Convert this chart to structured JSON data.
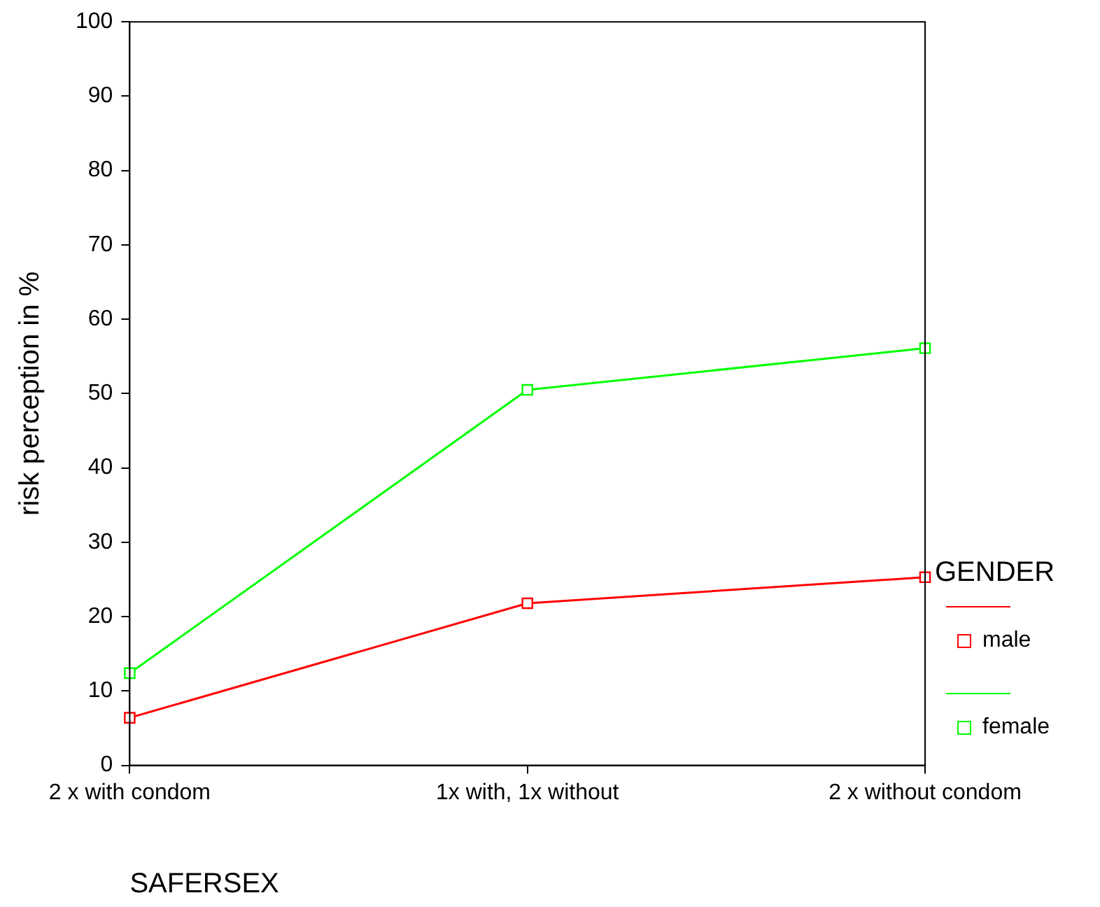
{
  "chart_data": {
    "type": "line",
    "xlabel": "SAFERSEX",
    "ylabel": "risk perception in %",
    "legend_title": "GENDER",
    "legend": "right",
    "grid": false,
    "marker": "square",
    "line_style": "solid",
    "categories": [
      "2 x with condom",
      "1x with, 1x without",
      "2 x without condom"
    ],
    "ylim": [
      0,
      100
    ],
    "yticks": [
      0,
      10,
      20,
      30,
      40,
      50,
      60,
      70,
      80,
      90,
      100
    ],
    "series": [
      {
        "name": "male",
        "color": "#ff0000",
        "values": [
          6.4,
          21.8,
          25.3
        ]
      },
      {
        "name": "female",
        "color": "#00ff00",
        "values": [
          12.4,
          50.5,
          56.1
        ]
      }
    ]
  }
}
